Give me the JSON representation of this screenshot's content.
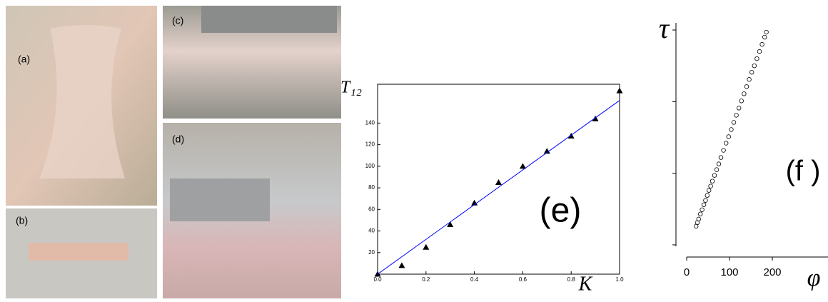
{
  "photos": {
    "labels": [
      "(a)",
      "(b)",
      "(c)",
      "(d)"
    ]
  },
  "chart_data": [
    {
      "type": "scatter",
      "annotation": "(e)",
      "ylabel": "T₁₂",
      "xlabel": "K",
      "xlim": [
        0,
        1
      ],
      "ylim": [
        0,
        176
      ],
      "xticks": [
        {
          "value": 0,
          "label": "0.0"
        },
        {
          "value": 0.2,
          "label": "0.2"
        },
        {
          "value": 0.4,
          "label": "0.4"
        },
        {
          "value": 0.6,
          "label": "0.6"
        },
        {
          "value": 0.8,
          "label": "0.8"
        },
        {
          "value": 1,
          "label": "1.0"
        }
      ],
      "yticks": [
        20,
        40,
        60,
        80,
        100,
        120,
        140
      ],
      "series": [
        {
          "mode": "markers",
          "marker": "triangle",
          "color": "#000000",
          "x": [
            0,
            0.1,
            0.2,
            0.3,
            0.4,
            0.5,
            0.6,
            0.7,
            0.8,
            0.9,
            1.0
          ],
          "values": [
            0,
            8,
            25,
            46,
            66,
            85,
            100,
            114,
            128,
            144,
            170
          ]
        },
        {
          "mode": "line",
          "color": "#0000ff",
          "x": [
            0,
            1
          ],
          "values": [
            0,
            161
          ]
        }
      ]
    },
    {
      "type": "scatter",
      "annotation": "(f )",
      "ylabel": "τ",
      "xlabel": "φ",
      "xlim": [
        0,
        330
      ],
      "ylim": [
        0.83,
        4.1
      ],
      "xticks": [
        0,
        100,
        200
      ],
      "yticks": [
        1,
        2,
        3,
        4
      ],
      "ytick_labels": false,
      "series": [
        {
          "mode": "markers",
          "marker": "circle",
          "color": "#000000",
          "x": [
            22,
            25,
            28,
            32,
            36,
            40,
            44,
            48,
            52,
            56,
            60,
            65,
            70,
            75,
            80,
            86,
            92,
            98,
            104,
            110,
            116,
            122,
            128,
            134,
            140,
            146,
            152,
            158,
            164,
            170,
            176,
            182,
            186
          ],
          "values": [
            1.26,
            1.31,
            1.36,
            1.43,
            1.49,
            1.56,
            1.62,
            1.69,
            1.76,
            1.82,
            1.89,
            1.97,
            2.05,
            2.13,
            2.22,
            2.32,
            2.42,
            2.51,
            2.61,
            2.71,
            2.81,
            2.91,
            3.01,
            3.11,
            3.21,
            3.31,
            3.41,
            3.5,
            3.6,
            3.7,
            3.8,
            3.9,
            3.97
          ]
        }
      ]
    }
  ]
}
